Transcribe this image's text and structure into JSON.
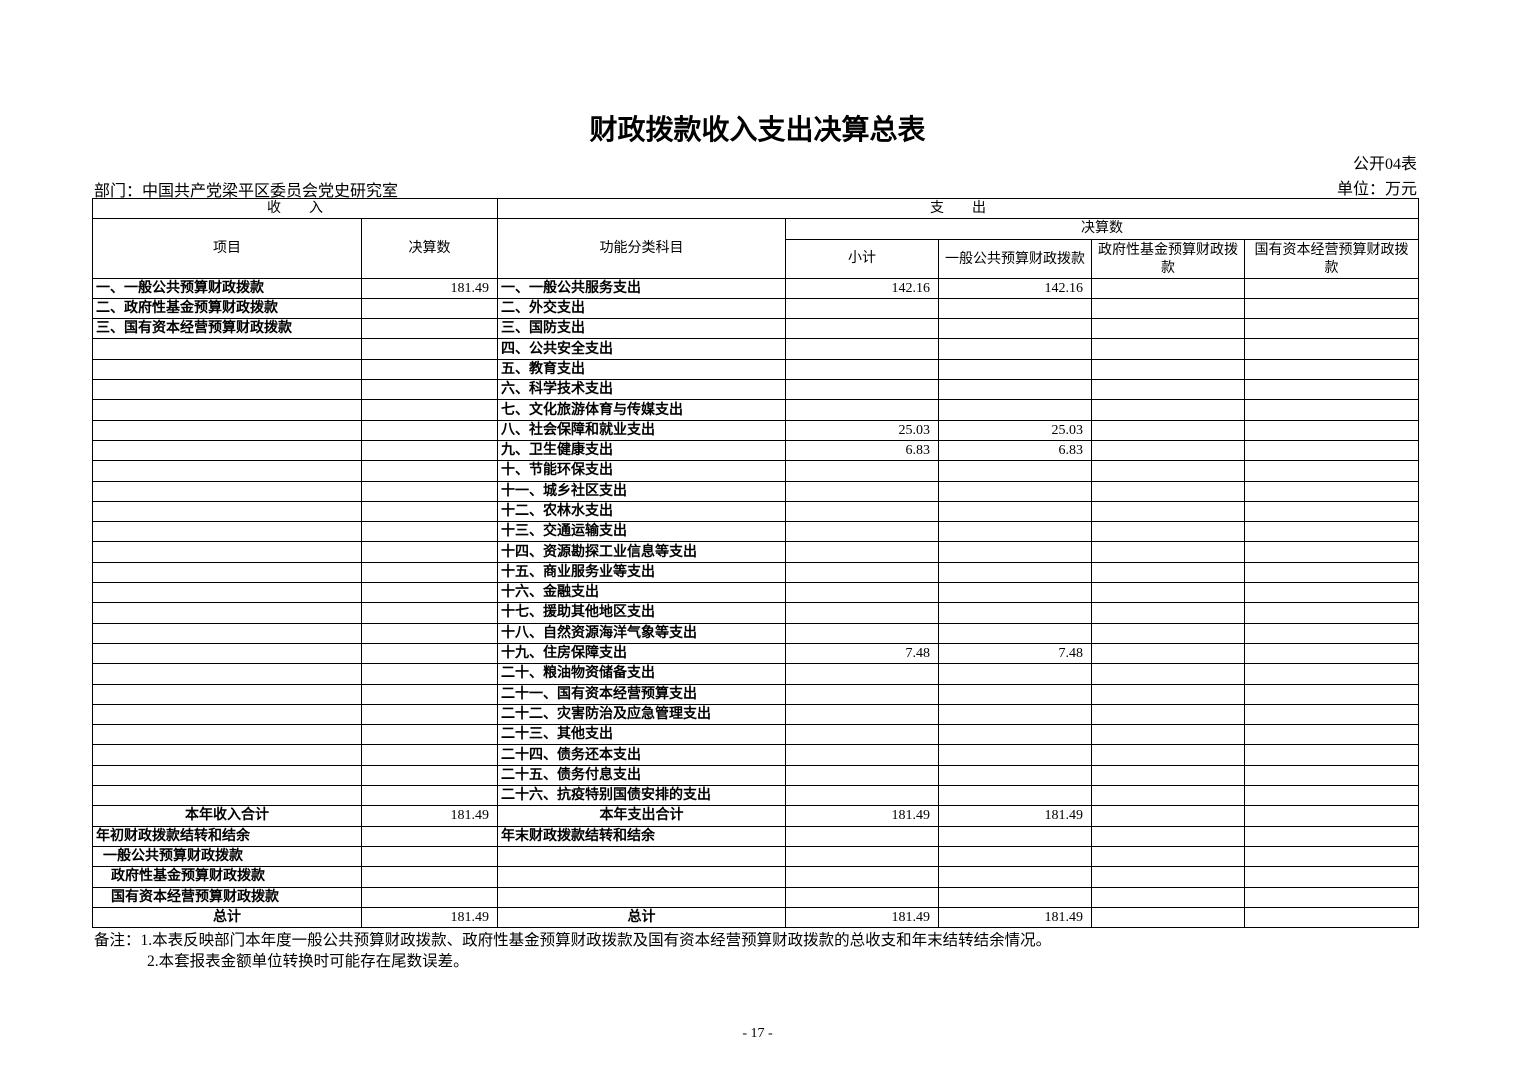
{
  "title": "财政拨款收入支出决算总表",
  "table_code": "公开04表",
  "department": "部门：中国共产党梁平区委员会党史研究室",
  "unit": "单位：万元",
  "headers": {
    "income": "收　　入",
    "expense": "支　　出",
    "item": "项目",
    "amount": "决算数",
    "function_item": "功能分类科目",
    "final_amount": "决算数",
    "subtotal": "小计",
    "general": "一般公共预算财政拨款",
    "fund": "政府性基金预算财政拨款",
    "state_capital": "国有资本经营预算财政拨款"
  },
  "rows": [
    [
      "一、一般公共预算财政拨款",
      "181.49",
      "一、一般公共服务支出",
      "142.16",
      "142.16",
      "",
      ""
    ],
    [
      "二、政府性基金预算财政拨款",
      "",
      "二、外交支出",
      "",
      "",
      "",
      ""
    ],
    [
      "三、国有资本经营预算财政拨款",
      "",
      "三、国防支出",
      "",
      "",
      "",
      ""
    ],
    [
      "",
      "",
      "四、公共安全支出",
      "",
      "",
      "",
      ""
    ],
    [
      "",
      "",
      "五、教育支出",
      "",
      "",
      "",
      ""
    ],
    [
      "",
      "",
      "六、科学技术支出",
      "",
      "",
      "",
      ""
    ],
    [
      "",
      "",
      "七、文化旅游体育与传媒支出",
      "",
      "",
      "",
      ""
    ],
    [
      "",
      "",
      "八、社会保障和就业支出",
      "25.03",
      "25.03",
      "",
      ""
    ],
    [
      "",
      "",
      "九、卫生健康支出",
      "6.83",
      "6.83",
      "",
      ""
    ],
    [
      "",
      "",
      "十、节能环保支出",
      "",
      "",
      "",
      ""
    ],
    [
      "",
      "",
      "十一、城乡社区支出",
      "",
      "",
      "",
      ""
    ],
    [
      "",
      "",
      "十二、农林水支出",
      "",
      "",
      "",
      ""
    ],
    [
      "",
      "",
      "十三、交通运输支出",
      "",
      "",
      "",
      ""
    ],
    [
      "",
      "",
      "十四、资源勘探工业信息等支出",
      "",
      "",
      "",
      ""
    ],
    [
      "",
      "",
      "十五、商业服务业等支出",
      "",
      "",
      "",
      ""
    ],
    [
      "",
      "",
      "十六、金融支出",
      "",
      "",
      "",
      ""
    ],
    [
      "",
      "",
      "十七、援助其他地区支出",
      "",
      "",
      "",
      ""
    ],
    [
      "",
      "",
      "十八、自然资源海洋气象等支出",
      "",
      "",
      "",
      ""
    ],
    [
      "",
      "",
      "十九、住房保障支出",
      "7.48",
      "7.48",
      "",
      ""
    ],
    [
      "",
      "",
      "二十、粮油物资储备支出",
      "",
      "",
      "",
      ""
    ],
    [
      "",
      "",
      "二十一、国有资本经营预算支出",
      "",
      "",
      "",
      ""
    ],
    [
      "",
      "",
      "二十二、灾害防治及应急管理支出",
      "",
      "",
      "",
      ""
    ],
    [
      "",
      "",
      "二十三、其他支出",
      "",
      "",
      "",
      ""
    ],
    [
      "",
      "",
      "二十四、债务还本支出",
      "",
      "",
      "",
      ""
    ],
    [
      "",
      "",
      "二十五、债务付息支出",
      "",
      "",
      "",
      ""
    ],
    [
      "",
      "",
      "二十六、抗疫特别国债安排的支出",
      "",
      "",
      "",
      ""
    ],
    [
      "本年收入合计",
      "181.49",
      "本年支出合计",
      "181.49",
      "181.49",
      "",
      ""
    ],
    [
      "年初财政拨款结转和结余",
      "",
      "年末财政拨款结转和结余",
      "",
      "",
      "",
      ""
    ],
    [
      "一般公共预算财政拨款",
      "",
      "",
      "",
      "",
      "",
      ""
    ],
    [
      "政府性基金预算财政拨款",
      "",
      "",
      "",
      "",
      "",
      ""
    ],
    [
      "国有资本经营预算财政拨款",
      "",
      "",
      "",
      "",
      "",
      ""
    ],
    [
      "总计",
      "181.49",
      "总计",
      "181.49",
      "181.49",
      "",
      ""
    ]
  ],
  "notes": [
    "备注：1.本表反映部门本年度一般公共预算财政拨款、政府性基金预算财政拨款及国有资本经营预算财政拨款的总收支和年末结转结余情况。",
    "2.本套报表金额单位转换时可能存在尾数误差。"
  ],
  "page_number": "- 17 -"
}
